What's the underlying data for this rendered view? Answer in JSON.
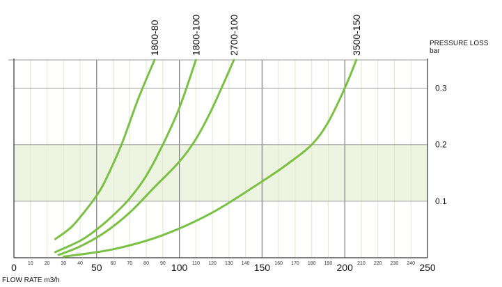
{
  "chart_data": {
    "type": "line",
    "title": "",
    "xlabel": "FLOW RATE m3/h",
    "ylabel": "PRESSURE LOSS",
    "ylabel_unit": "bar",
    "xlim": [
      0,
      250
    ],
    "ylim": [
      0,
      0.35
    ],
    "x_major_ticks": [
      0,
      50,
      100,
      150,
      200,
      250
    ],
    "x_minor_ticks": [
      10,
      20,
      30,
      40,
      60,
      70,
      80,
      90,
      110,
      120,
      130,
      140,
      160,
      170,
      180,
      190,
      210,
      220,
      230,
      240
    ],
    "y_ticks": [
      0.1,
      0.2,
      0.3
    ],
    "y_tick_labels": [
      "0.1",
      "0.2",
      "0.3"
    ],
    "highlight_band": [
      0.1,
      0.2
    ],
    "grid": true,
    "series_color": "#7ac143",
    "band_color": "#eef4e2",
    "series": [
      {
        "name": "1800-80",
        "x": [
          25,
          35,
          45,
          50,
          55,
          65,
          75,
          85
        ],
        "y": [
          0.033,
          0.055,
          0.09,
          0.11,
          0.135,
          0.2,
          0.28,
          0.35
        ]
      },
      {
        "name": "1800-100",
        "x": [
          25,
          40,
          50,
          60,
          70,
          80,
          90,
          100,
          110
        ],
        "y": [
          0.01,
          0.03,
          0.05,
          0.075,
          0.105,
          0.145,
          0.2,
          0.265,
          0.35
        ]
      },
      {
        "name": "2700-100",
        "x": [
          27,
          40,
          55,
          70,
          85,
          100,
          110,
          120,
          133
        ],
        "y": [
          0.005,
          0.02,
          0.045,
          0.08,
          0.125,
          0.17,
          0.21,
          0.265,
          0.35
        ]
      },
      {
        "name": "3500-150",
        "x": [
          30,
          60,
          90,
          120,
          150,
          165,
          180,
          190,
          200,
          207
        ],
        "y": [
          0.002,
          0.015,
          0.04,
          0.08,
          0.135,
          0.165,
          0.2,
          0.24,
          0.3,
          0.35
        ]
      }
    ]
  }
}
